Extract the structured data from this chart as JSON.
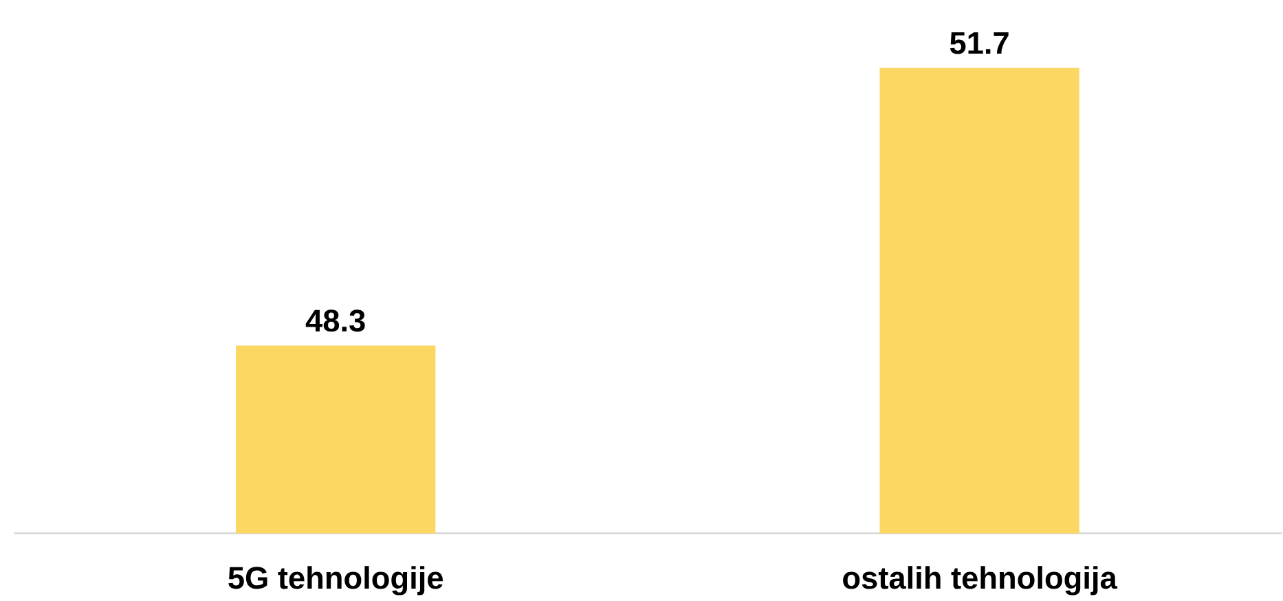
{
  "chart_data": {
    "type": "bar",
    "categories": [
      "5G tehnologije",
      "ostalih tehnologija"
    ],
    "values": [
      48.3,
      51.7
    ],
    "color": "#fdd764",
    "ylim": [
      46,
      51.7
    ],
    "data_labels": true
  }
}
